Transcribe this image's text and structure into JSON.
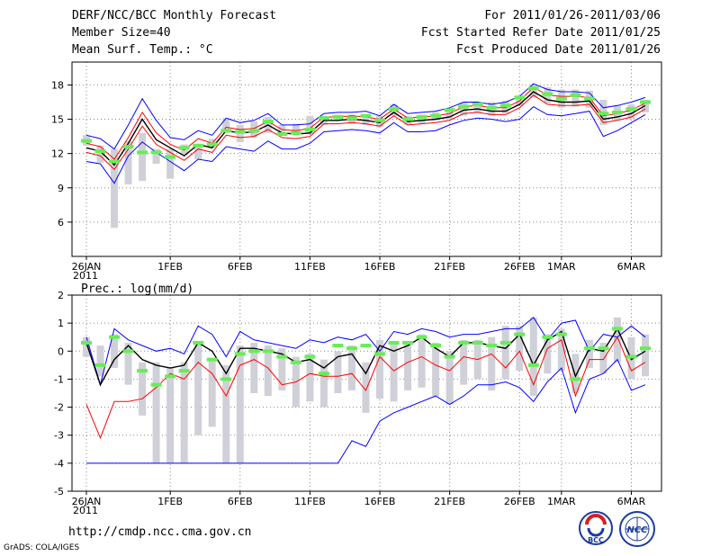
{
  "header": {
    "title": "DERF/NCC/BCC Monthly Forecast",
    "member": "Member Size=40",
    "temp_label": "Mean Surf. Temp.: °C",
    "period": "For 2011/01/26-2011/03/06",
    "started": "Fcst Started Refer Date 2011/01/25",
    "produced": "Fcst Produced Date 2011/01/26"
  },
  "footer": {
    "url": "http://cmdp.ncc.cma.gov.cn",
    "grads": "GrADS: COLA/IGES",
    "logo_bcc": "BCC",
    "logo_ncc": "NCC"
  },
  "colors": {
    "ensemble": "#000000",
    "upper": "#0000ff",
    "lower": "#ff0000",
    "middle": "#ff0000",
    "bar": "#d0d0d8",
    "mark": "#66ee55"
  },
  "chart_data": [
    {
      "type": "line",
      "title": "Mean Surf. Temp.: °C",
      "ylim": [
        3,
        20
      ],
      "yticks": [
        6,
        9,
        12,
        15,
        18
      ],
      "x_days": 40,
      "x_ticks": [
        {
          "day": 0,
          "label": "26JAN",
          "sub": "2011"
        },
        {
          "day": 6,
          "label": "1FEB"
        },
        {
          "day": 11,
          "label": "6FEB"
        },
        {
          "day": 16,
          "label": "11FEB"
        },
        {
          "day": 21,
          "label": "16FEB"
        },
        {
          "day": 26,
          "label": "21FEB"
        },
        {
          "day": 31,
          "label": "26FEB"
        },
        {
          "day": 34,
          "label": "1MAR"
        },
        {
          "day": 39,
          "label": "6MAR"
        }
      ],
      "series": [
        {
          "name": "upper",
          "values": [
            13.6,
            13.3,
            12.4,
            14.5,
            16.8,
            14.9,
            13.4,
            13.2,
            14.0,
            13.6,
            15.1,
            14.7,
            14.9,
            15.5,
            14.5,
            14.5,
            14.6,
            15.5,
            15.6,
            15.6,
            15.7,
            15.3,
            16.3,
            15.5,
            15.6,
            15.7,
            16.0,
            16.5,
            16.5,
            16.3,
            16.5,
            17.0,
            18.1,
            17.6,
            17.4,
            17.4,
            17.3,
            16.0,
            16.2,
            16.5,
            16.9
          ]
        },
        {
          "name": "mean_hi",
          "values": [
            12.9,
            12.6,
            11.5,
            13.4,
            15.6,
            13.8,
            12.8,
            12.3,
            13.3,
            12.9,
            14.3,
            14.1,
            14.2,
            14.8,
            14.1,
            14.0,
            14.2,
            15.2,
            15.2,
            15.3,
            15.2,
            15.0,
            15.9,
            15.1,
            15.2,
            15.3,
            15.5,
            16.1,
            16.2,
            16.0,
            16.0,
            16.6,
            17.8,
            17.1,
            17.0,
            17.0,
            16.9,
            15.3,
            15.5,
            15.8,
            16.4
          ]
        },
        {
          "name": "mean",
          "values": [
            12.5,
            12.2,
            11.0,
            12.9,
            15.0,
            13.2,
            12.5,
            11.8,
            12.8,
            12.5,
            14.0,
            13.8,
            13.9,
            14.5,
            13.8,
            13.7,
            13.8,
            14.9,
            14.9,
            15.0,
            14.9,
            14.7,
            15.6,
            14.8,
            14.9,
            15.0,
            15.2,
            15.8,
            15.9,
            15.7,
            15.7,
            16.3,
            17.4,
            16.7,
            16.5,
            16.5,
            16.6,
            15.0,
            15.2,
            15.5,
            16.2
          ]
        },
        {
          "name": "mean_lo",
          "values": [
            12.1,
            11.8,
            10.6,
            12.4,
            14.4,
            12.8,
            12.1,
            11.4,
            12.4,
            12.1,
            13.6,
            13.4,
            13.5,
            14.1,
            13.4,
            13.3,
            13.5,
            14.6,
            14.6,
            14.7,
            14.6,
            14.4,
            15.3,
            14.5,
            14.6,
            14.7,
            14.9,
            15.5,
            15.6,
            15.4,
            15.4,
            16.0,
            17.1,
            16.3,
            16.2,
            16.2,
            16.3,
            14.7,
            14.9,
            15.2,
            15.9
          ]
        },
        {
          "name": "lower",
          "values": [
            11.3,
            11.1,
            9.4,
            11.8,
            13.0,
            12.1,
            11.3,
            10.5,
            11.5,
            11.3,
            12.6,
            12.4,
            12.2,
            13.1,
            12.4,
            12.4,
            12.9,
            13.9,
            14.0,
            14.1,
            14.0,
            13.8,
            14.7,
            13.9,
            13.9,
            14.0,
            14.5,
            14.9,
            15.1,
            15.0,
            14.8,
            15.0,
            16.1,
            15.4,
            15.3,
            15.5,
            15.7,
            13.5,
            14.0,
            14.7,
            15.4
          ]
        }
      ],
      "bars": [
        [
          12.7,
          13.6
        ],
        [
          11.2,
          12.7
        ],
        [
          5.5,
          12.4
        ],
        [
          9.3,
          13.1
        ],
        [
          9.6,
          13.8
        ],
        [
          11.1,
          12.4
        ],
        [
          9.8,
          12.4
        ],
        [
          11.9,
          12.8
        ],
        [
          11.5,
          12.8
        ],
        [
          12.5,
          13.3
        ],
        [
          13.8,
          15.1
        ],
        [
          13.0,
          14.5
        ],
        [
          13.4,
          14.8
        ],
        [
          13.8,
          15.2
        ],
        [
          13.6,
          14.5
        ],
        [
          13.6,
          14.6
        ],
        [
          13.7,
          15.3
        ],
        [
          14.5,
          15.3
        ],
        [
          14.9,
          15.4
        ],
        [
          14.6,
          15.4
        ],
        [
          14.5,
          15.4
        ],
        [
          14.3,
          15.3
        ],
        [
          15.3,
          16.3
        ],
        [
          14.5,
          15.3
        ],
        [
          14.6,
          15.4
        ],
        [
          14.9,
          15.6
        ],
        [
          15.0,
          16.0
        ],
        [
          15.3,
          16.5
        ],
        [
          15.6,
          16.5
        ],
        [
          15.3,
          16.5
        ],
        [
          15.5,
          16.6
        ],
        [
          16.2,
          17.1
        ],
        [
          16.9,
          18.0
        ],
        [
          16.4,
          17.8
        ],
        [
          16.0,
          17.6
        ],
        [
          16.1,
          17.6
        ],
        [
          16.0,
          17.5
        ],
        [
          14.5,
          16.7
        ],
        [
          14.9,
          16.2
        ],
        [
          15.0,
          16.3
        ],
        [
          15.6,
          16.7
        ]
      ],
      "marks": [
        13.1,
        12.2,
        11.3,
        12.6,
        12.1,
        12.1,
        11.7,
        12.5,
        12.7,
        12.8,
        14.0,
        13.9,
        14.0,
        14.8,
        13.7,
        13.8,
        14.1,
        15.1,
        15.2,
        15.1,
        15.3,
        14.9,
        15.9,
        15.0,
        15.2,
        15.3,
        15.8,
        16.1,
        16.3,
        16.0,
        16.2,
        16.9,
        17.7,
        17.2,
        16.8,
        17.1,
        16.8,
        15.5,
        15.6,
        15.9,
        16.5
      ]
    },
    {
      "type": "line",
      "title": "Prec.: log(mm/d)",
      "ylim": [
        -5,
        2
      ],
      "yticks": [
        -5,
        -4,
        -3,
        -2,
        -1,
        0,
        1,
        2
      ],
      "x_days": 40,
      "x_ticks": [
        {
          "day": 0,
          "label": "26JAN",
          "sub": "2011"
        },
        {
          "day": 6,
          "label": "1FEB"
        },
        {
          "day": 11,
          "label": "6FEB"
        },
        {
          "day": 16,
          "label": "11FEB"
        },
        {
          "day": 21,
          "label": "16FEB"
        },
        {
          "day": 26,
          "label": "21FEB"
        },
        {
          "day": 31,
          "label": "26FEB"
        },
        {
          "day": 34,
          "label": "1MAR"
        },
        {
          "day": 39,
          "label": "6MAR"
        }
      ],
      "series": [
        {
          "name": "upper",
          "values": [
            0.5,
            -1.2,
            0.8,
            0.4,
            0.2,
            0.0,
            0.1,
            -0.1,
            0.9,
            0.6,
            -0.2,
            0.7,
            0.4,
            0.3,
            0.2,
            0.1,
            0.4,
            0.3,
            0.5,
            0.4,
            0.6,
            0.0,
            0.7,
            0.6,
            0.8,
            0.7,
            0.5,
            0.6,
            0.6,
            0.7,
            0.8,
            0.8,
            1.2,
            0.4,
            1.0,
            1.1,
            0.0,
            0.6,
            0.5,
            0.9,
            0.5
          ]
        },
        {
          "name": "mean",
          "values": [
            0.3,
            -1.2,
            -0.3,
            0.2,
            -0.3,
            -0.5,
            -0.6,
            -0.5,
            0.3,
            0.0,
            -0.8,
            0.1,
            0.1,
            0.0,
            -0.1,
            -0.4,
            -0.3,
            -0.6,
            -0.2,
            -0.1,
            -0.8,
            0.2,
            0.0,
            0.2,
            0.5,
            0.1,
            -0.2,
            0.3,
            0.3,
            0.2,
            0.1,
            0.6,
            -0.5,
            0.4,
            0.7,
            -0.9,
            0.1,
            0.0,
            0.8,
            -0.3,
            0.0
          ]
        },
        {
          "name": "lower_mean",
          "values": [
            -1.9,
            -3.1,
            -1.8,
            -1.8,
            -1.7,
            -1.3,
            -0.8,
            -1.0,
            -0.4,
            -0.8,
            -1.6,
            -0.5,
            -0.3,
            -0.6,
            -1.2,
            -1.1,
            -0.8,
            -0.9,
            -0.9,
            -0.8,
            -1.4,
            -0.2,
            -0.7,
            -0.4,
            -0.2,
            -0.5,
            -0.7,
            -0.2,
            -0.3,
            -0.1,
            -0.6,
            0.0,
            -1.2,
            0.1,
            0.4,
            -1.6,
            -0.3,
            -0.3,
            0.5,
            -0.7,
            -0.4
          ]
        },
        {
          "name": "lower",
          "values": [
            -4.0,
            -4.0,
            -4.0,
            -4.0,
            -4.0,
            -4.0,
            -4.0,
            -4.0,
            -4.0,
            -4.0,
            -4.0,
            -4.0,
            -4.0,
            -4.0,
            -4.0,
            -4.0,
            -4.0,
            -4.0,
            -4.0,
            -3.2,
            -3.4,
            -2.5,
            -2.2,
            -2.0,
            -1.8,
            -1.6,
            -1.9,
            -1.6,
            -1.2,
            -1.2,
            -1.1,
            -1.3,
            -1.8,
            -1.1,
            -0.6,
            -2.2,
            -1.0,
            -0.8,
            -0.3,
            -1.4,
            -1.2
          ]
        }
      ],
      "bars": [
        [
          -0.2,
          0.5
        ],
        [
          -0.9,
          0.2
        ],
        [
          -0.6,
          0.6
        ],
        [
          -1.2,
          0.3
        ],
        [
          -2.3,
          -0.4
        ],
        [
          -4.0,
          -0.4
        ],
        [
          -4.0,
          -0.6
        ],
        [
          -4.0,
          -0.4
        ],
        [
          -3.0,
          0.3
        ],
        [
          -2.7,
          -0.3
        ],
        [
          -4.0,
          -0.5
        ],
        [
          -4.0,
          0.2
        ],
        [
          -1.5,
          0.3
        ],
        [
          -1.6,
          0.2
        ],
        [
          -1.4,
          0.1
        ],
        [
          -2.0,
          -0.2
        ],
        [
          -1.8,
          -0.1
        ],
        [
          -2.0,
          -0.3
        ],
        [
          -1.5,
          0.0
        ],
        [
          -1.4,
          0.2
        ],
        [
          -2.2,
          -0.4
        ],
        [
          -1.7,
          0.4
        ],
        [
          -1.8,
          0.3
        ],
        [
          -1.4,
          0.3
        ],
        [
          -1.3,
          0.6
        ],
        [
          -1.6,
          0.3
        ],
        [
          -1.9,
          0.0
        ],
        [
          -1.2,
          0.4
        ],
        [
          -1.0,
          0.4
        ],
        [
          -1.4,
          0.5
        ],
        [
          -1.0,
          0.9
        ],
        [
          -0.7,
          0.9
        ],
        [
          -1.6,
          1.2
        ],
        [
          -0.8,
          0.6
        ],
        [
          -0.7,
          0.8
        ],
        [
          -1.5,
          -0.1
        ],
        [
          -0.6,
          0.4
        ],
        [
          -0.8,
          0.3
        ],
        [
          -0.4,
          1.2
        ],
        [
          -1.0,
          0.5
        ],
        [
          -0.9,
          0.6
        ]
      ],
      "marks": [
        0.3,
        -0.5,
        0.5,
        0.0,
        -0.7,
        -1.2,
        -0.9,
        -0.7,
        0.3,
        -0.3,
        -1.0,
        -0.1,
        0.0,
        0.0,
        -0.2,
        -0.4,
        -0.2,
        -0.8,
        0.2,
        0.1,
        0.2,
        -0.1,
        0.3,
        0.3,
        0.5,
        0.2,
        -0.2,
        0.3,
        0.3,
        0.2,
        0.3,
        0.6,
        -0.5,
        0.5,
        0.6,
        -1.0,
        0.1,
        0.1,
        0.8,
        -0.2,
        0.1
      ]
    }
  ]
}
